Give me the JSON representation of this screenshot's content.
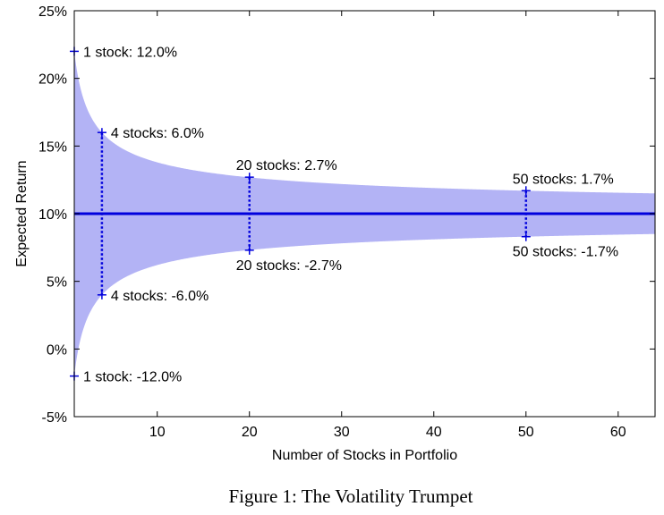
{
  "chart_data": {
    "type": "area",
    "xlabel": "Number of Stocks in Portfolio",
    "ylabel": "Expected Return",
    "caption": "Figure 1: The Volatility Trumpet",
    "xlim": [
      1,
      64
    ],
    "ylim": [
      -5,
      25
    ],
    "x_ticks": [
      10,
      20,
      30,
      40,
      50,
      60
    ],
    "x_tick_labels": [
      "10",
      "20",
      "30",
      "40",
      "50",
      "60"
    ],
    "y_ticks": [
      -5,
      0,
      5,
      10,
      15,
      20,
      25
    ],
    "y_tick_labels": [
      "-5%",
      "0%",
      "5%",
      "10%",
      "15%",
      "20%",
      "25%"
    ],
    "mean_return": 10,
    "band": {
      "center": 10,
      "single_stock_deviation": 12.0,
      "model": "deviation = 12 / sqrt(n)"
    },
    "grid": false,
    "colors": {
      "band_fill": "#b3b3f5",
      "line": "#0000dd",
      "marker": "#0000dd"
    },
    "markers": [
      {
        "n": 1,
        "upper_label": "1 stock: 12.0%",
        "lower_label": "1 stock: -12.0%",
        "dev": 12.0
      },
      {
        "n": 4,
        "upper_label": "4 stocks: 6.0%",
        "lower_label": "4 stocks: -6.0%",
        "dev": 6.0
      },
      {
        "n": 20,
        "upper_label": "20 stocks: 2.7%",
        "lower_label": "20 stocks: -2.7%",
        "dev": 2.7
      },
      {
        "n": 50,
        "upper_label": "50 stocks: 1.7%",
        "lower_label": "50 stocks: -1.7%",
        "dev": 1.7
      }
    ]
  }
}
